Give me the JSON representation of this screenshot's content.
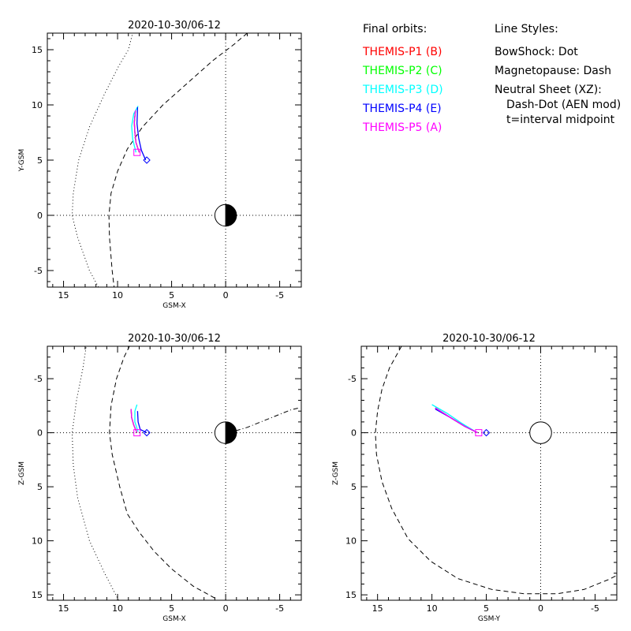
{
  "colors": {
    "p1": "#ff0000",
    "p2": "#00ff00",
    "p3": "#00ffff",
    "p4": "#0000ff",
    "p5": "#ff00ff",
    "axes": "#000000"
  },
  "legend": {
    "orbits_title": "Final orbits:",
    "probes": [
      {
        "label": "THEMIS-P1 (B)",
        "color_key": "p1"
      },
      {
        "label": "THEMIS-P2 (C)",
        "color_key": "p2"
      },
      {
        "label": "THEMIS-P3 (D)",
        "color_key": "p3"
      },
      {
        "label": "THEMIS-P4 (E)",
        "color_key": "p4"
      },
      {
        "label": "THEMIS-P5 (A)",
        "color_key": "p5"
      }
    ],
    "styles_title": "Line Styles:",
    "styles": [
      "BowShock: Dot",
      "Magnetopause: Dash",
      "Neutral Sheet (XZ):",
      "Dash-Dot (AEN mod)",
      "t=interval midpoint"
    ]
  },
  "chart_data": [
    {
      "type": "line",
      "panel": "xy",
      "title": "2020-10-30/06-12",
      "xlabel": "GSM-X",
      "ylabel": "Y-GSM",
      "xlim": [
        16.5,
        -7.0
      ],
      "ylim": [
        16.5,
        -6.5
      ],
      "xticks": [
        15,
        10,
        5,
        0,
        -5
      ],
      "yticks": [
        -5,
        0,
        5,
        10,
        15
      ],
      "earth": {
        "x": 0,
        "y": 0,
        "radius": 1,
        "night_side": "negative-x"
      },
      "bow_shock": [
        [
          11.2,
          -7.5
        ],
        [
          12.6,
          -5
        ],
        [
          13.7,
          -2
        ],
        [
          14.2,
          0
        ],
        [
          14.1,
          2
        ],
        [
          13.6,
          5
        ],
        [
          12.6,
          8
        ],
        [
          11.2,
          11
        ],
        [
          9.9,
          13.5
        ],
        [
          9,
          15
        ],
        [
          8.6,
          16.5
        ]
      ],
      "magnetopause": [
        [
          10.2,
          -7.5
        ],
        [
          10.5,
          -5
        ],
        [
          10.75,
          -2
        ],
        [
          10.8,
          0
        ],
        [
          10.6,
          2
        ],
        [
          10,
          4
        ],
        [
          9.1,
          6
        ],
        [
          7.7,
          8
        ],
        [
          5.8,
          10
        ],
        [
          3.5,
          12
        ],
        [
          1.2,
          14
        ],
        [
          -0.8,
          15.5
        ],
        [
          -2,
          16.5
        ]
      ],
      "orbits": [
        {
          "probe": "p1",
          "points": [
            [
              8.0,
              5.7
            ],
            [
              8.3,
              6.6
            ],
            [
              8.4,
              7.5
            ],
            [
              8.45,
              8.4
            ],
            [
              8.35,
              9.5
            ]
          ]
        },
        {
          "probe": "p2",
          "points": [
            [
              8.0,
              5.7
            ],
            [
              8.3,
              6.6
            ],
            [
              8.4,
              7.5
            ],
            [
              8.45,
              8.4
            ],
            [
              8.35,
              9.5
            ]
          ]
        },
        {
          "probe": "p3",
          "points": [
            [
              8.3,
              5.7
            ],
            [
              8.6,
              6.9
            ],
            [
              8.7,
              8.1
            ],
            [
              8.5,
              9.2
            ],
            [
              8.1,
              9.9
            ]
          ]
        },
        {
          "probe": "p4",
          "points": [
            [
              7.4,
              5.0
            ],
            [
              7.8,
              5.9
            ],
            [
              8.05,
              7.0
            ],
            [
              8.2,
              8.3
            ],
            [
              8.15,
              9.8
            ]
          ]
        },
        {
          "probe": "p5",
          "points": [
            [
              8.0,
              5.7
            ],
            [
              8.3,
              6.6
            ],
            [
              8.4,
              7.5
            ],
            [
              8.45,
              8.4
            ],
            [
              8.35,
              9.5
            ]
          ]
        }
      ],
      "final_positions": [
        {
          "probe": "p4",
          "marker": "diamond",
          "x": 7.3,
          "y": 5.0
        },
        {
          "probe": "p5",
          "marker": "square",
          "x": 8.2,
          "y": 5.7
        }
      ]
    },
    {
      "type": "line",
      "panel": "xz",
      "title": "2020-10-30/06-12",
      "xlabel": "GSM-X",
      "ylabel": "Z-GSM",
      "xlim": [
        16.5,
        -7.0
      ],
      "ylim": [
        -8.0,
        15.5
      ],
      "xticks": [
        15,
        10,
        5,
        0,
        -5
      ],
      "yticks": [
        -5,
        0,
        5,
        10,
        15
      ],
      "earth": {
        "x": 0,
        "y": 0,
        "radius": 1,
        "night_side": "negative-x"
      },
      "bow_shock": [
        [
          9.9,
          15.5
        ],
        [
          11.2,
          13
        ],
        [
          12.6,
          10
        ],
        [
          13.7,
          6
        ],
        [
          14.1,
          3
        ],
        [
          14.2,
          0
        ],
        [
          13.8,
          -3
        ],
        [
          13.2,
          -6
        ],
        [
          12.9,
          -8
        ]
      ],
      "magnetopause": [
        [
          1,
          15.3
        ],
        [
          3,
          14.2
        ],
        [
          5,
          12.6
        ],
        [
          6.6,
          11
        ],
        [
          8,
          9.2
        ],
        [
          9.1,
          7.5
        ],
        [
          9.8,
          5
        ],
        [
          10.5,
          2
        ],
        [
          10.75,
          0
        ],
        [
          10.6,
          -2.5
        ],
        [
          10.1,
          -5
        ],
        [
          9.4,
          -7
        ],
        [
          8.9,
          -8
        ]
      ],
      "neutral_sheet": [
        [
          0,
          0
        ],
        [
          -1,
          -0.2
        ],
        [
          -2,
          -0.5
        ],
        [
          -3,
          -0.9
        ],
        [
          -4,
          -1.3
        ],
        [
          -5,
          -1.7
        ],
        [
          -6,
          -2.1
        ],
        [
          -6.8,
          -2.3
        ]
      ],
      "orbits": [
        {
          "probe": "p1",
          "points": [
            [
              8.2,
              0.0
            ],
            [
              8.5,
              -0.7
            ],
            [
              8.7,
              -1.4
            ],
            [
              8.75,
              -2.2
            ]
          ]
        },
        {
          "probe": "p2",
          "points": [
            [
              8.2,
              0.0
            ],
            [
              8.5,
              -0.7
            ],
            [
              8.7,
              -1.4
            ],
            [
              8.75,
              -2.2
            ]
          ]
        },
        {
          "probe": "p3",
          "points": [
            [
              8.1,
              -0.1
            ],
            [
              8.4,
              -1.0
            ],
            [
              8.4,
              -2.0
            ],
            [
              8.2,
              -2.6
            ]
          ]
        },
        {
          "probe": "p4",
          "points": [
            [
              7.3,
              0.0
            ],
            [
              7.9,
              -0.3
            ],
            [
              8.1,
              -1.0
            ],
            [
              8.15,
              -2.0
            ]
          ]
        },
        {
          "probe": "p5",
          "points": [
            [
              8.2,
              0.0
            ],
            [
              8.5,
              -0.7
            ],
            [
              8.7,
              -1.4
            ],
            [
              8.75,
              -2.2
            ]
          ]
        }
      ],
      "final_positions": [
        {
          "probe": "p4",
          "marker": "diamond",
          "x": 7.3,
          "y": 0.0
        },
        {
          "probe": "p5",
          "marker": "square",
          "x": 8.2,
          "y": 0.0
        }
      ]
    },
    {
      "type": "line",
      "panel": "yz",
      "title": "2020-10-30/06-12",
      "xlabel": "GSM-Y",
      "ylabel": "Z-GSM",
      "xlim": [
        16.5,
        -7.0
      ],
      "ylim": [
        -8.0,
        15.5
      ],
      "xticks": [
        15,
        10,
        5,
        0,
        -5
      ],
      "yticks": [
        -5,
        0,
        5,
        10,
        15
      ],
      "earth": {
        "x": 0,
        "y": 0,
        "radius": 1,
        "night_side": "none"
      },
      "magnetopause": [
        [
          12.8,
          -8
        ],
        [
          13.9,
          -6
        ],
        [
          14.6,
          -4
        ],
        [
          15,
          -2
        ],
        [
          15.2,
          0
        ],
        [
          15.1,
          2
        ],
        [
          14.6,
          4.5
        ],
        [
          13.7,
          7
        ],
        [
          12.2,
          9.8
        ],
        [
          10.1,
          11.9
        ],
        [
          7.6,
          13.5
        ],
        [
          4.5,
          14.5
        ],
        [
          1.5,
          14.9
        ],
        [
          -1.5,
          14.9
        ],
        [
          -4,
          14.5
        ],
        [
          -6.2,
          13.6
        ],
        [
          -7,
          13.2
        ]
      ],
      "orbits": [
        {
          "probe": "p1",
          "points": [
            [
              5.8,
              0.0
            ],
            [
              7.0,
              -0.6
            ],
            [
              8.3,
              -1.4
            ],
            [
              9.7,
              -2.3
            ]
          ]
        },
        {
          "probe": "p2",
          "points": [
            [
              5.8,
              0.0
            ],
            [
              7.0,
              -0.6
            ],
            [
              8.3,
              -1.4
            ],
            [
              9.7,
              -2.3
            ]
          ]
        },
        {
          "probe": "p3",
          "points": [
            [
              6.0,
              -0.1
            ],
            [
              7.3,
              -0.9
            ],
            [
              8.6,
              -1.8
            ],
            [
              10.0,
              -2.6
            ]
          ]
        },
        {
          "probe": "p4",
          "points": [
            [
              5.8,
              0.0
            ],
            [
              7.0,
              -0.6
            ],
            [
              8.3,
              -1.4
            ],
            [
              9.7,
              -2.2
            ]
          ]
        },
        {
          "probe": "p5",
          "points": [
            [
              5.8,
              0.0
            ],
            [
              7.0,
              -0.6
            ],
            [
              8.3,
              -1.4
            ],
            [
              9.7,
              -2.3
            ]
          ]
        }
      ],
      "final_positions": [
        {
          "probe": "p4",
          "marker": "diamond",
          "x": 5.0,
          "y": 0.0
        },
        {
          "probe": "p5",
          "marker": "square",
          "x": 5.7,
          "y": 0.0
        }
      ]
    }
  ]
}
